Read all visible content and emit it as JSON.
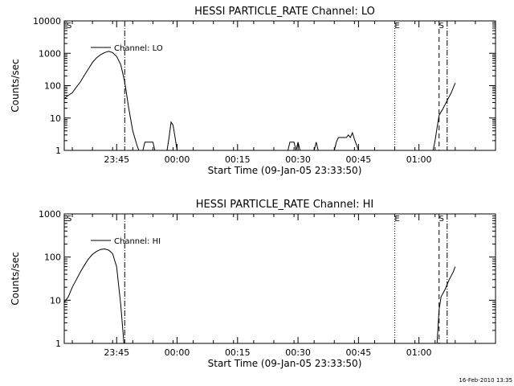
{
  "footer": {
    "timestamp": "16-Feb-2010 13:35"
  },
  "chart_data": [
    {
      "type": "line",
      "title": "HESSI PARTICLE_RATE Channel: LO",
      "xlabel": "Start Time (09-Jan-05 23:33:50)",
      "ylabel": "Counts/sec",
      "yscale": "log",
      "ylim": [
        1,
        10000
      ],
      "ytick_labels": [
        "1",
        "10",
        "100",
        "1000",
        "10000"
      ],
      "ytick_values": [
        1,
        10,
        100,
        1000,
        10000
      ],
      "xlim": [
        -2,
        105
      ],
      "xtick_labels": [
        "23:45",
        "00:00",
        "00:15",
        "00:30",
        "00:45",
        "01:00"
      ],
      "xtick_values": [
        11,
        26,
        41,
        56,
        71,
        86
      ],
      "legend": {
        "label": "Channel: LO",
        "position": "top-left"
      },
      "markers": [
        {
          "label": "S",
          "x": -2,
          "style": "none"
        },
        {
          "label": "",
          "x": 13,
          "style": "dashdot"
        },
        {
          "label": "E",
          "x": 80,
          "style": "dotted"
        },
        {
          "label": "S",
          "x": 91,
          "style": "dashed"
        },
        {
          "label": "",
          "x": 93,
          "style": "dashdot"
        }
      ],
      "series": [
        {
          "name": "Channel: LO",
          "segments": [
            [
              [
                -2,
                40
              ],
              [
                -1,
                50
              ],
              [
                0,
                60
              ],
              [
                1,
                90
              ],
              [
                2,
                130
              ],
              [
                3,
                210
              ],
              [
                4,
                330
              ],
              [
                5,
                520
              ],
              [
                6,
                720
              ],
              [
                7,
                900
              ],
              [
                8,
                1050
              ],
              [
                9,
                1150
              ],
              [
                10,
                1050
              ],
              [
                11,
                800
              ],
              [
                12,
                450
              ],
              [
                13,
                130
              ],
              [
                14,
                20
              ],
              [
                15,
                4
              ],
              [
                16,
                1.5
              ],
              [
                16.5,
                1
              ]
            ],
            [
              [
                17.5,
                1
              ],
              [
                18,
                1.8
              ],
              [
                20,
                1.8
              ],
              [
                20.5,
                1
              ]
            ],
            [
              [
                23.5,
                1
              ],
              [
                24,
                2.5
              ],
              [
                24.5,
                7.5
              ],
              [
                25,
                6
              ],
              [
                25.5,
                2.5
              ],
              [
                26,
                1
              ]
            ],
            [
              [
                53.5,
                1
              ],
              [
                54,
                1.8
              ],
              [
                55,
                1.8
              ],
              [
                55.5,
                1
              ],
              [
                56,
                1.8
              ],
              [
                56.5,
                1
              ]
            ],
            [
              [
                60,
                1
              ],
              [
                60.5,
                1.8
              ],
              [
                61,
                1
              ]
            ],
            [
              [
                65,
                1
              ],
              [
                65.5,
                1.8
              ],
              [
                66,
                2.5
              ],
              [
                68,
                2.5
              ],
              [
                68.5,
                3
              ],
              [
                69,
                2.5
              ],
              [
                69.5,
                3.5
              ],
              [
                70,
                2.2
              ],
              [
                70.5,
                1.5
              ],
              [
                71,
                1
              ]
            ],
            [
              [
                89.5,
                1
              ],
              [
                90,
                2
              ],
              [
                90.5,
                5
              ],
              [
                91,
                12
              ],
              [
                92,
                20
              ],
              [
                93,
                35
              ],
              [
                94,
                60
              ],
              [
                95,
                120
              ]
            ]
          ]
        }
      ]
    },
    {
      "type": "line",
      "title": "HESSI PARTICLE_RATE Channel: HI",
      "xlabel": "Start Time (09-Jan-05 23:33:50)",
      "ylabel": "Counts/sec",
      "yscale": "log",
      "ylim": [
        1,
        1000
      ],
      "ytick_labels": [
        "1",
        "10",
        "100",
        "1000"
      ],
      "ytick_values": [
        1,
        10,
        100,
        1000
      ],
      "xlim": [
        -2,
        105
      ],
      "xtick_labels": [
        "23:45",
        "00:00",
        "00:15",
        "00:30",
        "00:45",
        "01:00"
      ],
      "xtick_values": [
        11,
        26,
        41,
        56,
        71,
        86
      ],
      "legend": {
        "label": "Channel: HI",
        "position": "top-left"
      },
      "markers": [
        {
          "label": "S",
          "x": -2,
          "style": "none"
        },
        {
          "label": "",
          "x": 13,
          "style": "dashdot"
        },
        {
          "label": "E",
          "x": 80,
          "style": "dotted"
        },
        {
          "label": "S",
          "x": 91,
          "style": "dashed"
        },
        {
          "label": "",
          "x": 93,
          "style": "dashdot"
        }
      ],
      "series": [
        {
          "name": "Channel: HI",
          "segments": [
            [
              [
                -2,
                9
              ],
              [
                -1,
                12
              ],
              [
                0,
                20
              ],
              [
                1,
                30
              ],
              [
                2,
                45
              ],
              [
                3,
                65
              ],
              [
                4,
                90
              ],
              [
                5,
                115
              ],
              [
                6,
                135
              ],
              [
                7,
                150
              ],
              [
                8,
                155
              ],
              [
                9,
                145
              ],
              [
                10,
                120
              ],
              [
                11,
                60
              ],
              [
                12,
                8
              ],
              [
                12.8,
                1
              ]
            ],
            [
              [
                90.5,
                1
              ],
              [
                91,
                6
              ],
              [
                91.5,
                12
              ],
              [
                92.5,
                18
              ],
              [
                93.5,
                30
              ],
              [
                94.5,
                45
              ],
              [
                95,
                60
              ]
            ]
          ]
        }
      ]
    }
  ]
}
